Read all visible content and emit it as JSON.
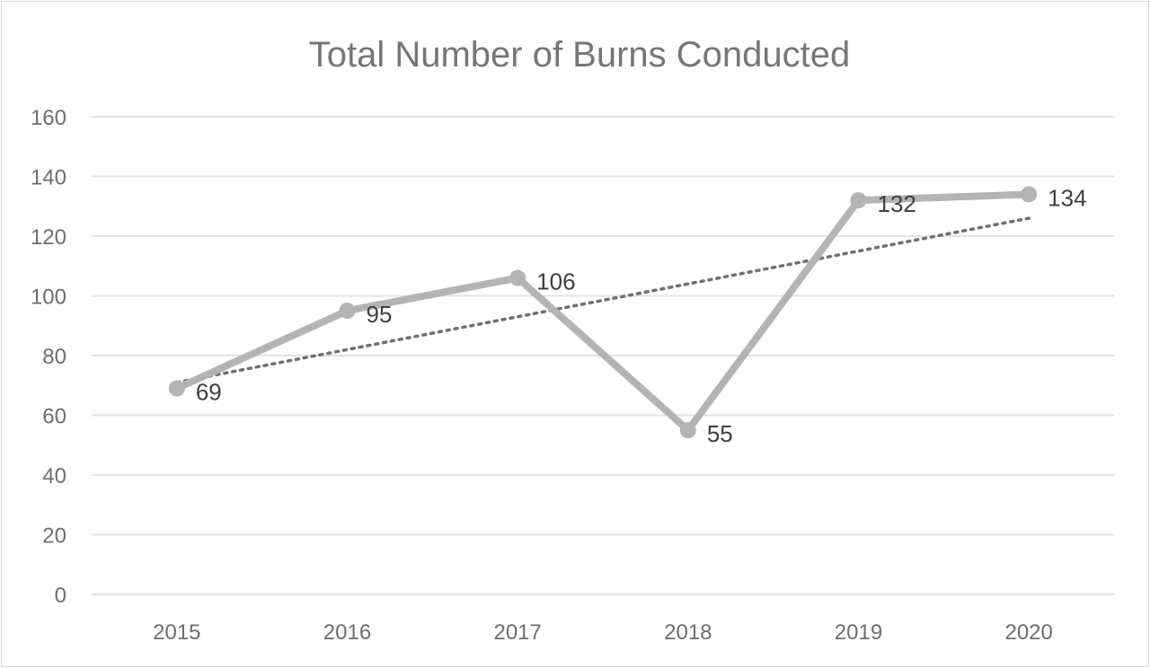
{
  "chart_data": {
    "type": "line",
    "title": "Total Number of Burns Conducted",
    "xlabel": "",
    "ylabel": "",
    "categories": [
      "2015",
      "2016",
      "2017",
      "2018",
      "2019",
      "2020"
    ],
    "series": [
      {
        "values": [
          69,
          95,
          106,
          55,
          132,
          134
        ],
        "color": "#b4b4b6",
        "data_labels": [
          "69",
          "95",
          "106",
          "55",
          "132",
          "134"
        ]
      }
    ],
    "trendline": {
      "type": "linear",
      "style": "dotted",
      "color": "#707070",
      "start": 71,
      "end": 126
    },
    "ylim": [
      0,
      160
    ],
    "yticks": [
      "0",
      "20",
      "40",
      "60",
      "80",
      "100",
      "120",
      "140",
      "160"
    ],
    "grid": true,
    "legend": "none",
    "colors": {
      "gridline": "#e3e3e3",
      "axis_text": "#6e6e6e",
      "title_text": "#767676",
      "label_text": "#404040"
    }
  }
}
